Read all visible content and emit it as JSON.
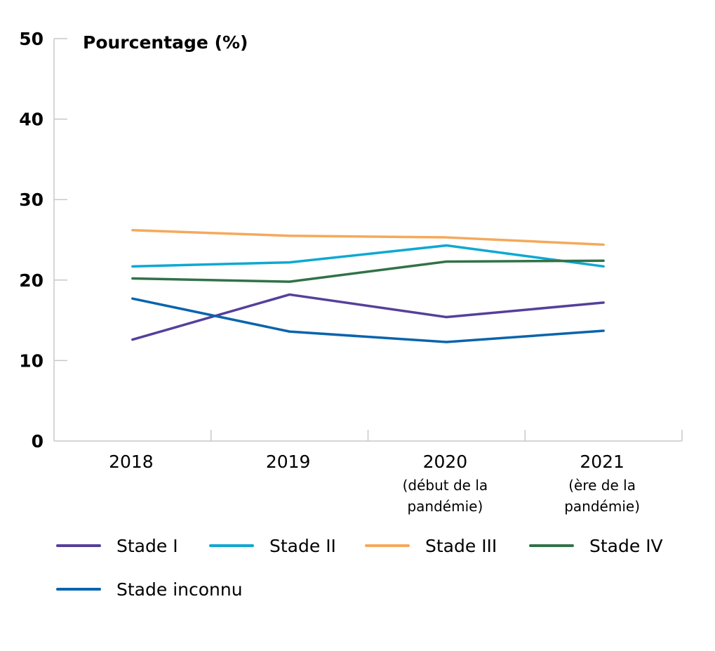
{
  "chart_data": {
    "type": "line",
    "ylabel": "Pourcentage (%)",
    "ylim": [
      0,
      50
    ],
    "yticks": [
      "0",
      "10",
      "20",
      "30",
      "40",
      "50"
    ],
    "categories": [
      {
        "label": "2018",
        "sub": []
      },
      {
        "label": "2019",
        "sub": []
      },
      {
        "label": "2020",
        "sub": [
          "(début de la",
          "pandémie)"
        ]
      },
      {
        "label": "2021",
        "sub": [
          "(ère de la",
          "pandémie)"
        ]
      }
    ],
    "series": [
      {
        "name": "Stade I",
        "color": "#55409a",
        "values": [
          12.6,
          18.2,
          15.4,
          17.2
        ]
      },
      {
        "name": "Stade II",
        "color": "#0fa8d2",
        "values": [
          21.7,
          22.2,
          24.3,
          21.7
        ]
      },
      {
        "name": "Stade III",
        "color": "#f5a95a",
        "values": [
          26.2,
          25.5,
          25.3,
          24.4
        ]
      },
      {
        "name": "Stade IV",
        "color": "#317248",
        "values": [
          20.2,
          19.8,
          22.3,
          22.4
        ]
      },
      {
        "name": "Stade inconnu",
        "color": "#0a64ac",
        "values": [
          17.7,
          13.6,
          12.3,
          13.7
        ]
      }
    ],
    "grid": false,
    "legend_position": "bottom"
  },
  "colors": {
    "axis": "#c8c8c8"
  }
}
